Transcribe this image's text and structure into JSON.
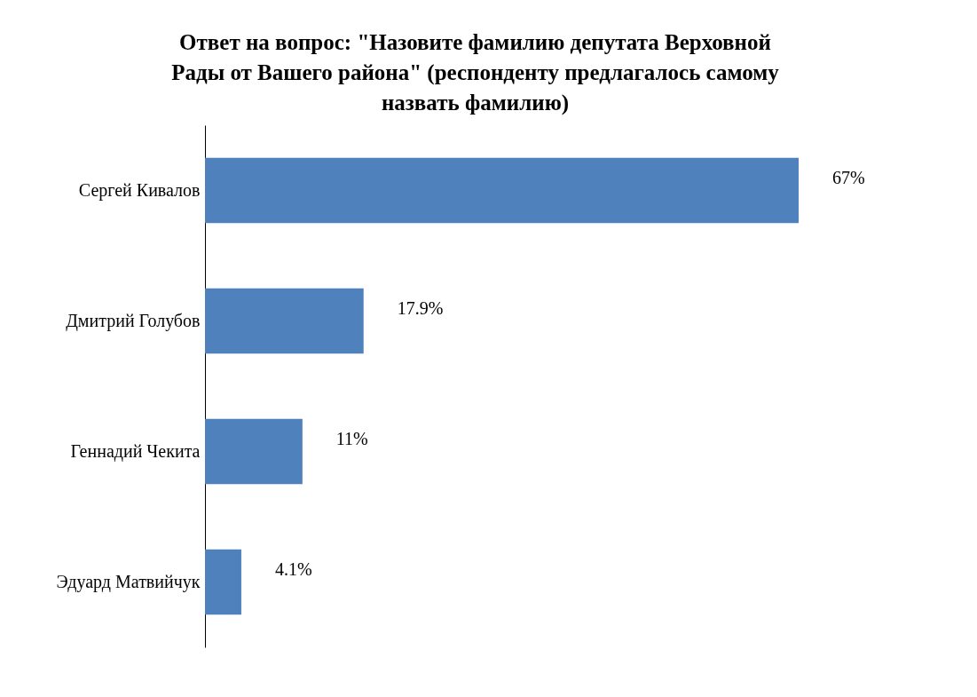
{
  "chart_data": {
    "type": "bar",
    "orientation": "horizontal",
    "title": "Ответ на вопрос: \"Назовите фамилию депутата Верховной Рады от Вашего района\" (респонденту предлагалось самому назвать фамилию)",
    "categories": [
      "Сергей Кивалов",
      "Дмитрий Голубов",
      "Геннадий Чекита",
      "Эдуард Матвийчук"
    ],
    "values": [
      67,
      17.9,
      11,
      4.1
    ],
    "value_labels": [
      "67%",
      "17.9%",
      "11%",
      "4.1%"
    ],
    "color": "#4f81bd"
  }
}
